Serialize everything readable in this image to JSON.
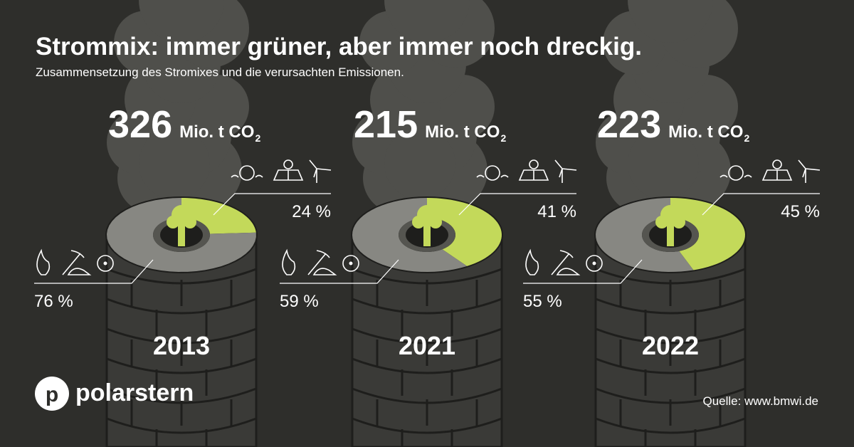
{
  "chart_data": {
    "type": "donut",
    "title": "Strommix: immer grüner, aber immer noch dreckig.",
    "subtitle": "Zusammensetzung des Stromixes und die verursachten Emissionen.",
    "categories": [
      "2013",
      "2021",
      "2022"
    ],
    "emissions": [
      326,
      215,
      223
    ],
    "unit": "Mio. t CO",
    "unit_subscript": "2",
    "series": [
      {
        "color": "#c3d95a",
        "values": [
          24,
          41,
          45
        ],
        "value_labels": [
          "24 %",
          "41 %",
          "45 %"
        ]
      },
      {
        "color": "#878782",
        "values": [
          76,
          59,
          55
        ],
        "value_labels": [
          "76 %",
          "59 %",
          "55 %"
        ]
      }
    ]
  },
  "logo": {
    "letter": "p",
    "name": "polarstern"
  },
  "source": "Quelle: www.bmwi.de"
}
